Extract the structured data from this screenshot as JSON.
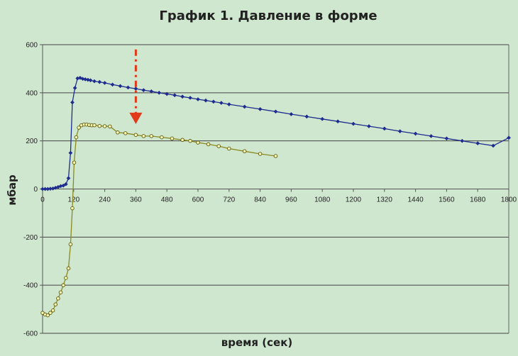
{
  "chart_data": {
    "type": "line",
    "title": "График 1. Давление в форме",
    "xlabel": "время (сек)",
    "ylabel": "мбар",
    "xlim": [
      0,
      1800
    ],
    "ylim": [
      -600,
      600
    ],
    "x_ticks": [
      0,
      120,
      240,
      360,
      480,
      600,
      720,
      840,
      960,
      1080,
      1200,
      1320,
      1440,
      1560,
      1680,
      1800
    ],
    "y_ticks": [
      600,
      400,
      200,
      0,
      -200,
      -400,
      -600
    ],
    "grid": "horizontal",
    "legend": "none",
    "series": [
      {
        "color": "#1f2c8f",
        "marker": "diamond-filled",
        "points": [
          [
            0,
            0
          ],
          [
            10,
            0
          ],
          [
            20,
            0
          ],
          [
            30,
            1
          ],
          [
            40,
            2
          ],
          [
            50,
            5
          ],
          [
            60,
            8
          ],
          [
            70,
            12
          ],
          [
            80,
            14
          ],
          [
            90,
            20
          ],
          [
            100,
            45
          ],
          [
            108,
            150
          ],
          [
            115,
            360
          ],
          [
            125,
            420
          ],
          [
            135,
            460
          ],
          [
            145,
            462
          ],
          [
            155,
            458
          ],
          [
            165,
            456
          ],
          [
            175,
            454
          ],
          [
            185,
            452
          ],
          [
            200,
            448
          ],
          [
            220,
            445
          ],
          [
            240,
            441
          ],
          [
            270,
            434
          ],
          [
            300,
            428
          ],
          [
            330,
            422
          ],
          [
            360,
            417
          ],
          [
            390,
            411
          ],
          [
            420,
            406
          ],
          [
            450,
            400
          ],
          [
            480,
            395
          ],
          [
            510,
            390
          ],
          [
            540,
            384
          ],
          [
            570,
            379
          ],
          [
            600,
            373
          ],
          [
            630,
            368
          ],
          [
            660,
            363
          ],
          [
            690,
            358
          ],
          [
            720,
            352
          ],
          [
            780,
            342
          ],
          [
            840,
            332
          ],
          [
            900,
            322
          ],
          [
            960,
            311
          ],
          [
            1020,
            301
          ],
          [
            1080,
            291
          ],
          [
            1140,
            281
          ],
          [
            1200,
            271
          ],
          [
            1260,
            261
          ],
          [
            1320,
            251
          ],
          [
            1380,
            240
          ],
          [
            1440,
            230
          ],
          [
            1500,
            220
          ],
          [
            1560,
            210
          ],
          [
            1620,
            200
          ],
          [
            1680,
            190
          ],
          [
            1740,
            180
          ],
          [
            1800,
            213
          ]
        ]
      },
      {
        "color": "#8a8a20",
        "marker": "circle-hollow",
        "points": [
          [
            0,
            -515
          ],
          [
            10,
            -522
          ],
          [
            20,
            -525
          ],
          [
            30,
            -515
          ],
          [
            40,
            -505
          ],
          [
            50,
            -480
          ],
          [
            60,
            -455
          ],
          [
            70,
            -430
          ],
          [
            80,
            -400
          ],
          [
            90,
            -370
          ],
          [
            100,
            -330
          ],
          [
            108,
            -230
          ],
          [
            115,
            -80
          ],
          [
            122,
            110
          ],
          [
            130,
            215
          ],
          [
            140,
            255
          ],
          [
            150,
            265
          ],
          [
            160,
            268
          ],
          [
            170,
            268
          ],
          [
            180,
            266
          ],
          [
            190,
            265
          ],
          [
            200,
            265
          ],
          [
            220,
            262
          ],
          [
            240,
            261
          ],
          [
            260,
            260
          ],
          [
            290,
            235
          ],
          [
            320,
            232
          ],
          [
            360,
            225
          ],
          [
            390,
            220
          ],
          [
            420,
            220
          ],
          [
            460,
            215
          ],
          [
            500,
            210
          ],
          [
            540,
            204
          ],
          [
            570,
            200
          ],
          [
            600,
            193
          ],
          [
            640,
            186
          ],
          [
            680,
            178
          ],
          [
            720,
            168
          ],
          [
            780,
            157
          ],
          [
            840,
            146
          ],
          [
            900,
            137
          ]
        ]
      }
    ],
    "annotation": {
      "type": "arrow",
      "color": "#e13a1a",
      "x": 360,
      "y_from": 580,
      "y_to": 270
    }
  }
}
